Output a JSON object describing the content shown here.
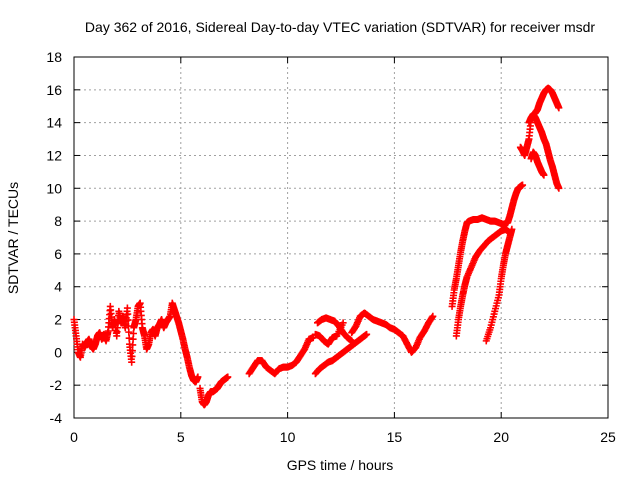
{
  "chart_data": {
    "type": "scatter",
    "title": "Day 362 of 2016, Sidereal Day-to-day VTEC variation (SDTVAR) for receiver msdr",
    "xlabel": "GPS time / hours",
    "ylabel": "SDTVAR / TECUs",
    "xlim": [
      0,
      25
    ],
    "ylim": [
      -4,
      18
    ],
    "xticks": [
      0,
      5,
      10,
      15,
      20,
      25
    ],
    "yticks": [
      -4,
      -2,
      0,
      2,
      4,
      6,
      8,
      10,
      12,
      14,
      16,
      18
    ],
    "grid": true,
    "marker": "+",
    "color": "#ff0000",
    "series": [
      {
        "x": [
          0.0,
          0.1,
          0.2,
          0.3,
          0.4,
          0.5,
          0.6,
          0.7,
          0.8,
          0.9,
          1.0,
          1.1,
          1.2,
          1.3,
          1.4,
          1.5,
          1.6,
          1.7,
          1.8,
          1.9,
          2.0,
          2.1,
          2.2,
          2.3,
          2.4,
          2.5,
          2.6,
          2.7,
          2.8,
          2.9,
          3.0,
          3.1,
          3.2,
          3.3,
          3.4,
          3.5,
          3.6,
          3.7,
          3.8,
          3.9,
          4.0,
          4.1,
          4.2,
          4.3,
          4.4,
          4.5,
          4.6,
          4.7,
          4.8,
          4.9,
          5.0,
          5.1,
          5.2,
          5.3,
          5.4,
          5.5,
          5.6,
          5.7,
          5.8
        ],
        "y": [
          2.0,
          1.0,
          0.0,
          -0.3,
          0.5,
          0.3,
          0.6,
          0.8,
          0.4,
          0.2,
          0.5,
          1.0,
          1.2,
          0.8,
          1.1,
          0.7,
          1.3,
          2.8,
          1.5,
          2.0,
          1.0,
          2.5,
          1.8,
          2.2,
          1.5,
          2.7,
          0.5,
          -0.6,
          1.5,
          2.0,
          2.8,
          3.0,
          1.5,
          1.0,
          0.2,
          0.5,
          1.2,
          1.4,
          1.0,
          1.5,
          1.7,
          2.0,
          1.5,
          1.8,
          2.0,
          2.2,
          3.0,
          2.6,
          2.2,
          1.8,
          1.3,
          0.8,
          0.2,
          -0.3,
          -0.9,
          -1.4,
          -1.7,
          -1.8,
          -1.5
        ]
      },
      {
        "x": [
          5.9,
          6.0,
          6.1,
          6.2,
          6.3,
          6.4,
          6.5,
          6.6,
          6.7,
          6.8,
          6.9,
          7.0,
          7.1,
          7.2
        ],
        "y": [
          -2.2,
          -3.0,
          -3.2,
          -3.0,
          -2.6,
          -2.4,
          -2.4,
          -2.3,
          -2.2,
          -2.0,
          -1.8,
          -1.7,
          -1.6,
          -1.5
        ]
      },
      {
        "x": [
          8.2,
          8.4,
          8.6,
          8.8,
          9.0,
          9.2,
          9.4,
          9.6,
          9.8,
          10.0,
          10.2,
          10.4,
          10.6,
          10.8,
          11.0,
          11.2
        ],
        "y": [
          -1.3,
          -0.9,
          -0.5,
          -0.5,
          -0.9,
          -1.1,
          -1.3,
          -1.0,
          -0.9,
          -0.9,
          -0.8,
          -0.6,
          -0.2,
          0.2,
          0.8,
          0.9
        ]
      },
      {
        "x": [
          11.3,
          11.5,
          11.7,
          11.9,
          12.1,
          12.3,
          12.5,
          12.7,
          12.9,
          13.1,
          13.3,
          13.5,
          13.7
        ],
        "y": [
          -1.3,
          -1.0,
          -0.8,
          -0.6,
          -0.5,
          -0.3,
          -0.1,
          0.1,
          0.3,
          0.5,
          0.7,
          0.9,
          1.1
        ]
      },
      {
        "x": [
          11.4,
          11.6,
          11.8,
          12.0,
          12.2,
          12.4,
          12.6,
          12.8,
          13.0
        ],
        "y": [
          1.8,
          2.0,
          2.1,
          2.0,
          1.9,
          1.6,
          1.2,
          0.9,
          0.7
        ]
      },
      {
        "x": [
          11.3,
          11.5,
          11.7,
          11.9,
          12.1,
          12.3,
          12.6
        ],
        "y": [
          1.1,
          1.0,
          0.7,
          0.5,
          0.9,
          1.0,
          1.8
        ]
      },
      {
        "x": [
          13.0,
          13.2,
          13.4,
          13.6,
          13.8,
          14.0,
          14.2,
          14.4,
          14.6,
          14.8,
          15.0,
          15.2,
          15.4,
          15.6,
          15.8,
          16.0,
          16.2,
          16.4,
          16.6,
          16.8
        ],
        "y": [
          1.2,
          1.6,
          2.2,
          2.4,
          2.2,
          2.0,
          1.9,
          1.8,
          1.7,
          1.5,
          1.4,
          1.2,
          1.0,
          0.5,
          0.0,
          0.3,
          0.9,
          1.3,
          1.8,
          2.2
        ]
      },
      {
        "x": [
          17.7,
          17.8,
          17.9,
          18.0,
          18.1,
          18.2,
          18.3,
          18.4,
          18.5,
          18.7,
          18.9,
          19.1,
          19.3,
          19.5,
          19.7,
          19.9,
          20.1,
          20.3,
          20.4,
          20.5,
          20.6,
          20.7,
          20.8,
          20.9,
          21.0
        ],
        "y": [
          2.8,
          3.8,
          4.5,
          5.3,
          6.1,
          6.8,
          7.4,
          7.9,
          8.0,
          8.1,
          8.1,
          8.2,
          8.1,
          8.0,
          8.0,
          7.9,
          7.8,
          7.9,
          8.3,
          8.8,
          9.3,
          9.7,
          10.0,
          10.1,
          10.2
        ]
      },
      {
        "x": [
          17.9,
          18.0,
          18.1,
          18.2,
          18.3,
          18.4,
          18.6,
          18.8,
          19.0,
          19.2,
          19.4,
          19.6,
          19.8,
          20.0,
          20.2,
          20.4
        ],
        "y": [
          1.0,
          2.0,
          2.8,
          3.5,
          4.1,
          4.6,
          5.2,
          5.8,
          6.2,
          6.5,
          6.8,
          7.0,
          7.2,
          7.4,
          7.5,
          7.3
        ]
      },
      {
        "x": [
          19.3,
          19.5,
          19.7,
          19.9,
          20.0,
          20.1,
          20.2,
          20.3,
          20.4,
          20.5
        ],
        "y": [
          0.7,
          1.5,
          2.5,
          3.5,
          4.5,
          5.3,
          6.0,
          6.5,
          7.0,
          7.5
        ]
      },
      {
        "x": [
          20.9,
          21.0,
          21.1,
          21.2,
          21.3,
          21.4,
          21.5,
          21.6,
          21.7,
          21.8,
          21.9,
          22.0,
          22.1,
          22.2,
          22.3,
          22.4,
          22.5,
          22.6,
          22.7
        ],
        "y": [
          12.5,
          12.3,
          12.0,
          12.5,
          13.0,
          14.2,
          14.5,
          14.3,
          14.0,
          13.7,
          13.4,
          13.0,
          12.7,
          12.2,
          11.7,
          11.3,
          10.8,
          10.3,
          10.0
        ]
      },
      {
        "x": [
          21.3,
          21.4,
          21.5,
          21.6,
          21.7,
          21.8,
          21.9,
          22.0,
          22.1,
          22.2,
          22.3,
          22.4,
          22.5,
          22.6,
          22.7
        ],
        "y": [
          14.0,
          14.3,
          14.5,
          14.6,
          14.8,
          15.2,
          15.5,
          15.8,
          16.0,
          16.1,
          16.0,
          15.8,
          15.5,
          15.2,
          14.9
        ]
      },
      {
        "x": [
          21.4,
          21.5,
          21.6,
          21.7,
          21.8,
          21.9,
          22.0
        ],
        "y": [
          11.8,
          12.2,
          12.0,
          11.6,
          11.3,
          11.0,
          10.8
        ]
      }
    ]
  }
}
